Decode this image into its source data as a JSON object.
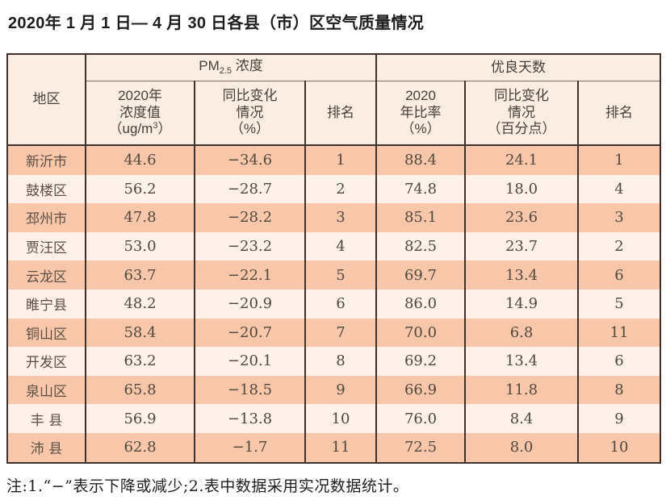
{
  "title": "2020年 1 月 1 日— 4 月 30 日各县（市）区空气质量情况",
  "table": {
    "header": {
      "region": "地区",
      "pm_group": {
        "prefix": "PM",
        "sub": "2.5",
        "suffix": " 浓度"
      },
      "good_group": "优良天数",
      "pm_value": {
        "l1": "2020年",
        "l2": "浓度值",
        "l3a": "（ug/m",
        "l3sup": "3",
        "l3b": "）"
      },
      "pm_change": {
        "l1": "同比变化",
        "l2": "情况",
        "l3": "（%）"
      },
      "pm_rank": "排名",
      "good_rate": {
        "l1": "2020",
        "l2": "年比率",
        "l3": "（%）"
      },
      "good_change": {
        "l1": "同比变化",
        "l2": "情况",
        "l3": "（百分点）"
      },
      "good_rank": "排名"
    },
    "rows": [
      {
        "region": "新沂市",
        "pm_value": "44.6",
        "pm_change": "−34.6",
        "pm_rank": "1",
        "good_rate": "88.4",
        "good_change": "24.1",
        "good_rank": "1"
      },
      {
        "region": "鼓楼区",
        "pm_value": "56.2",
        "pm_change": "−28.7",
        "pm_rank": "2",
        "good_rate": "74.8",
        "good_change": "18.0",
        "good_rank": "4"
      },
      {
        "region": "邳州市",
        "pm_value": "47.8",
        "pm_change": "−28.2",
        "pm_rank": "3",
        "good_rate": "85.1",
        "good_change": "23.6",
        "good_rank": "3"
      },
      {
        "region": "贾汪区",
        "pm_value": "53.0",
        "pm_change": "−23.2",
        "pm_rank": "4",
        "good_rate": "82.5",
        "good_change": "23.7",
        "good_rank": "2"
      },
      {
        "region": "云龙区",
        "pm_value": "63.7",
        "pm_change": "−22.1",
        "pm_rank": "5",
        "good_rate": "69.7",
        "good_change": "13.4",
        "good_rank": "6"
      },
      {
        "region": "睢宁县",
        "pm_value": "48.2",
        "pm_change": "−20.9",
        "pm_rank": "6",
        "good_rate": "86.0",
        "good_change": "14.9",
        "good_rank": "5"
      },
      {
        "region": "铜山区",
        "pm_value": "58.4",
        "pm_change": "−20.7",
        "pm_rank": "7",
        "good_rate": "70.0",
        "good_change": "6.8",
        "good_rank": "11"
      },
      {
        "region": "开发区",
        "pm_value": "63.2",
        "pm_change": "−20.1",
        "pm_rank": "8",
        "good_rate": "69.2",
        "good_change": "13.4",
        "good_rank": "6"
      },
      {
        "region": "泉山区",
        "pm_value": "65.8",
        "pm_change": "−18.5",
        "pm_rank": "9",
        "good_rate": "66.9",
        "good_change": "11.8",
        "good_rank": "8"
      },
      {
        "region": "丰 县",
        "pm_value": "56.9",
        "pm_change": "−13.8",
        "pm_rank": "10",
        "good_rate": "76.0",
        "good_change": "8.4",
        "good_rank": "9"
      },
      {
        "region": "沛 县",
        "pm_value": "62.8",
        "pm_change": "−1.7",
        "pm_rank": "11",
        "good_rate": "72.5",
        "good_change": "8.0",
        "good_rank": "10"
      }
    ]
  },
  "note": "注:1.“−”表示下降或减少;2.表中数据采用实况数据统计。",
  "colors": {
    "row_dark": "#f8c7a9",
    "row_light": "#fdf1ea",
    "header_bg": "#fcede2",
    "border": "#3f312b"
  }
}
